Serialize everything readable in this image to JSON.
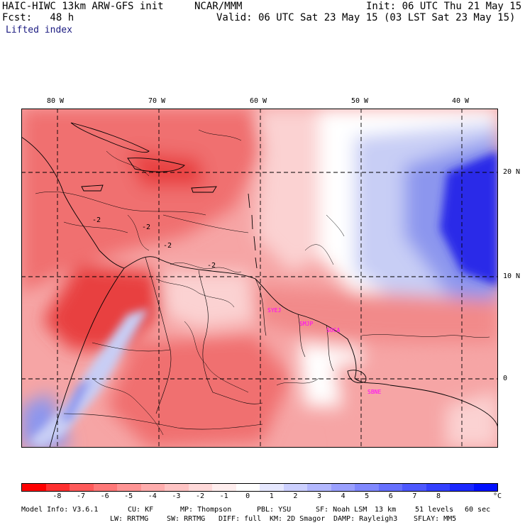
{
  "header": {
    "left_line1": "HAIC-HIWC 13km ARW-GFS init",
    "center_line1": "NCAR/MMM",
    "right_line1": "Init: 06 UTC Thu 21 May 15",
    "left_line2": "Fcst:   48 h",
    "right_line2": "Valid: 06 UTC Sat 23 May 15 (03 LST Sat 23 May 15)",
    "field_name": "Lifted index"
  },
  "map": {
    "lon_labels": [
      "80 W",
      "70 W",
      "60 W",
      "50 W",
      "40 W"
    ],
    "lat_labels": [
      "20 N",
      "10 N",
      "0"
    ],
    "stations": [
      "SYEJ",
      "SMJP",
      "SOCA",
      "SBNE"
    ],
    "contour_label": "-2",
    "colors": {
      "red_strong": "#e84040",
      "red_mid": "#f07070",
      "red_light": "#f6a5a5",
      "pink": "#fbd2d2",
      "white": "#ffffff",
      "blue_light": "#c8cef5",
      "blue_mid": "#8c96ee",
      "blue_deep": "#2a2ae8",
      "station": "#ff00ff"
    }
  },
  "colorbar": {
    "colors": [
      "#ff0000",
      "#ff3030",
      "#ff5a5a",
      "#ff7878",
      "#ff9494",
      "#ffadad",
      "#ffc4c4",
      "#ffd9d9",
      "#ffeeee",
      "#ffffff",
      "#e6e8ff",
      "#ccd0ff",
      "#b3b8ff",
      "#9aa0ff",
      "#8088ff",
      "#6670ff",
      "#4d58ff",
      "#3340ff",
      "#1a28ff",
      "#0010ff"
    ],
    "ticks": [
      "-8",
      "-7",
      "-6",
      "-5",
      "-4",
      "-3",
      "-2",
      "-1",
      "0",
      "1",
      "2",
      "3",
      "4",
      "5",
      "6",
      "7",
      "8"
    ],
    "unit": "°C"
  },
  "footer": {
    "line1_a": "Model Info: V3.6.1",
    "line1_b": "CU: KF",
    "line1_c": "MP: Thompson",
    "line1_d": "PBL: YSU",
    "line1_e": "SF: Noah LSM",
    "line1_f": "13 km",
    "line1_g": "51 levels",
    "line1_h": "60 sec",
    "line2_a": "LW: RRTMG",
    "line2_b": "SW: RRTMG",
    "line2_c": "DIFF: full",
    "line2_d": "KM: 2D Smagor",
    "line2_e": "DAMP: Rayleigh3",
    "line2_f": "SFLAY: MM5"
  }
}
